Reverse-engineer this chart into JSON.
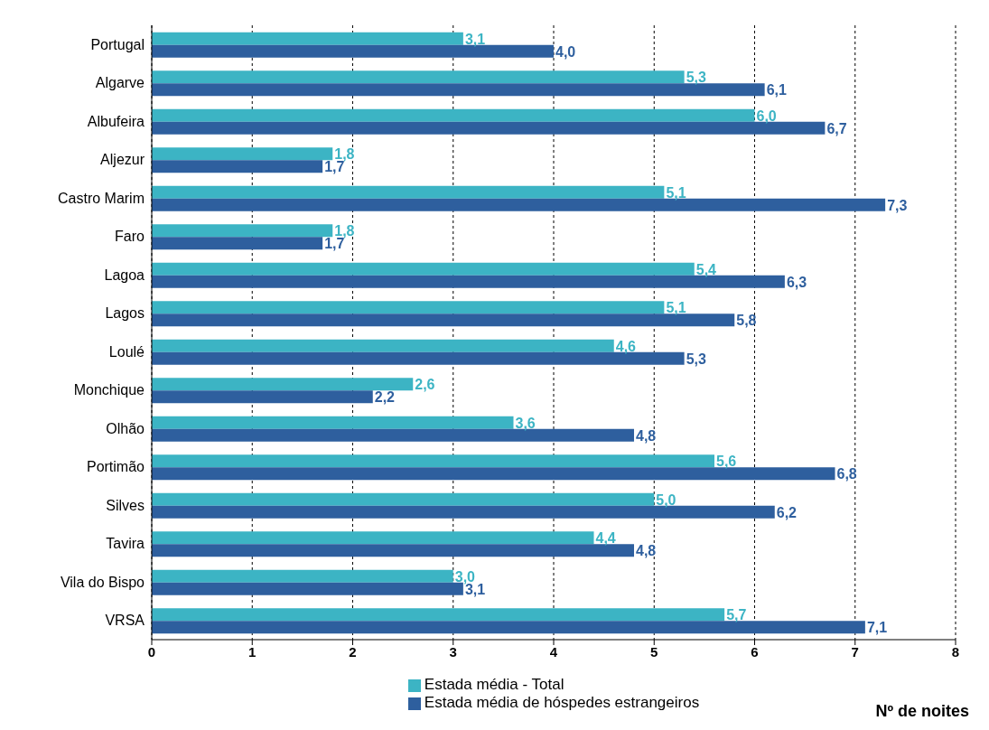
{
  "chart_data": {
    "type": "bar",
    "orientation": "horizontal",
    "xlabel": "Nº de noites",
    "categories": [
      "Portugal",
      "Algarve",
      "Albufeira",
      "Aljezur",
      "Castro Marim",
      "Faro",
      "Lagoa",
      "Lagos",
      "Loulé",
      "Monchique",
      "Olhão",
      "Portimão",
      "Silves",
      "Tavira",
      "Vila do Bispo",
      "VRSA"
    ],
    "series": [
      {
        "name": "Estada média  - Total",
        "color": "#3cb4c4",
        "values": [
          3.1,
          5.3,
          6.0,
          1.8,
          5.1,
          1.8,
          5.4,
          5.1,
          4.6,
          2.6,
          3.6,
          5.6,
          5.0,
          4.4,
          3.0,
          5.7
        ],
        "value_labels": [
          "3,1",
          "5,3",
          "6,0",
          "1,8",
          "5,1",
          "1,8",
          "5,4",
          "5,1",
          "4,6",
          "2,6",
          "3,6",
          "5,6",
          "5,0",
          "4,4",
          "3,0",
          "5,7"
        ]
      },
      {
        "name": "Estada média de hóspedes estrangeiros",
        "color": "#2e5f9e",
        "values": [
          4.0,
          6.1,
          6.7,
          1.7,
          7.3,
          1.7,
          6.3,
          5.8,
          5.3,
          2.2,
          4.8,
          6.8,
          6.2,
          4.8,
          3.1,
          7.1
        ],
        "value_labels": [
          "4,0",
          "6,1",
          "6,7",
          "1,7",
          "7,3",
          "1,7",
          "6,3",
          "5,8",
          "5,3",
          "2,2",
          "4,8",
          "6,8",
          "6,2",
          "4,8",
          "3,1",
          "7,1"
        ]
      }
    ],
    "xlim": [
      0,
      8
    ],
    "xticks": [
      0,
      1,
      2,
      3,
      4,
      5,
      6,
      7,
      8
    ],
    "grid": "x",
    "legend": "bottom"
  }
}
